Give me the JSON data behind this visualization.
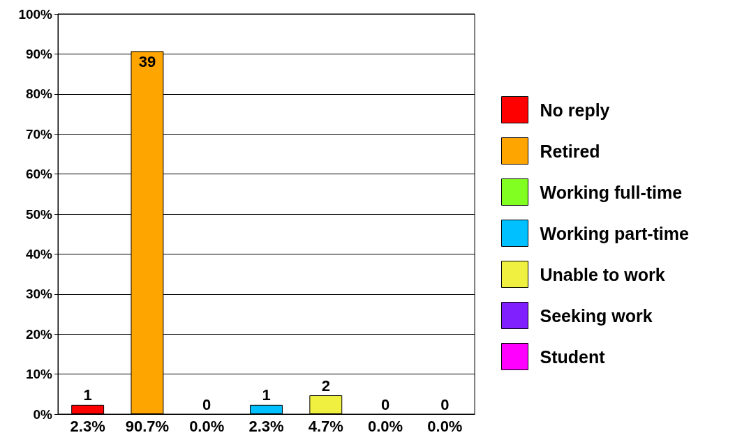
{
  "chart_data": {
    "type": "bar",
    "categories": [
      "2.3%",
      "90.7%",
      "0.0%",
      "2.3%",
      "4.7%",
      "0.0%",
      "0.0%"
    ],
    "series": [
      {
        "name": "No reply",
        "color": "#ff0000",
        "values": [
          2.3,
          null,
          null,
          null,
          null,
          null,
          null
        ]
      },
      {
        "name": "Retired",
        "color": "#ffa500",
        "values": [
          null,
          90.7,
          null,
          null,
          null,
          null,
          null
        ]
      },
      {
        "name": "Working full-time",
        "color": "#80ff20",
        "values": [
          null,
          null,
          0,
          null,
          null,
          null,
          null
        ]
      },
      {
        "name": "Working part-time",
        "color": "#00c0ff",
        "values": [
          null,
          null,
          null,
          2.3,
          null,
          null,
          null
        ]
      },
      {
        "name": "Unable to work",
        "color": "#f0f040",
        "values": [
          null,
          null,
          null,
          null,
          4.7,
          null,
          null
        ]
      },
      {
        "name": "Seeking work",
        "color": "#8020ff",
        "values": [
          null,
          null,
          null,
          null,
          null,
          0,
          null
        ]
      },
      {
        "name": "Student",
        "color": "#ff00ff",
        "values": [
          null,
          null,
          null,
          null,
          null,
          null,
          0
        ]
      }
    ],
    "annotations": [
      "1",
      "39",
      "0",
      "1",
      "2",
      "0",
      "0"
    ],
    "ylim": [
      0,
      100
    ],
    "yticks": [
      {
        "value": 0,
        "label": "0%"
      },
      {
        "value": 10,
        "label": "10%"
      },
      {
        "value": 20,
        "label": "20%"
      },
      {
        "value": 30,
        "label": "30%"
      },
      {
        "value": 40,
        "label": "40%"
      },
      {
        "value": 50,
        "label": "50%"
      },
      {
        "value": 60,
        "label": "60%"
      },
      {
        "value": 70,
        "label": "70%"
      },
      {
        "value": 80,
        "label": "80%"
      },
      {
        "value": 90,
        "label": "90%"
      },
      {
        "value": 100,
        "label": "100%"
      }
    ],
    "grid": "y",
    "legend": "right"
  }
}
